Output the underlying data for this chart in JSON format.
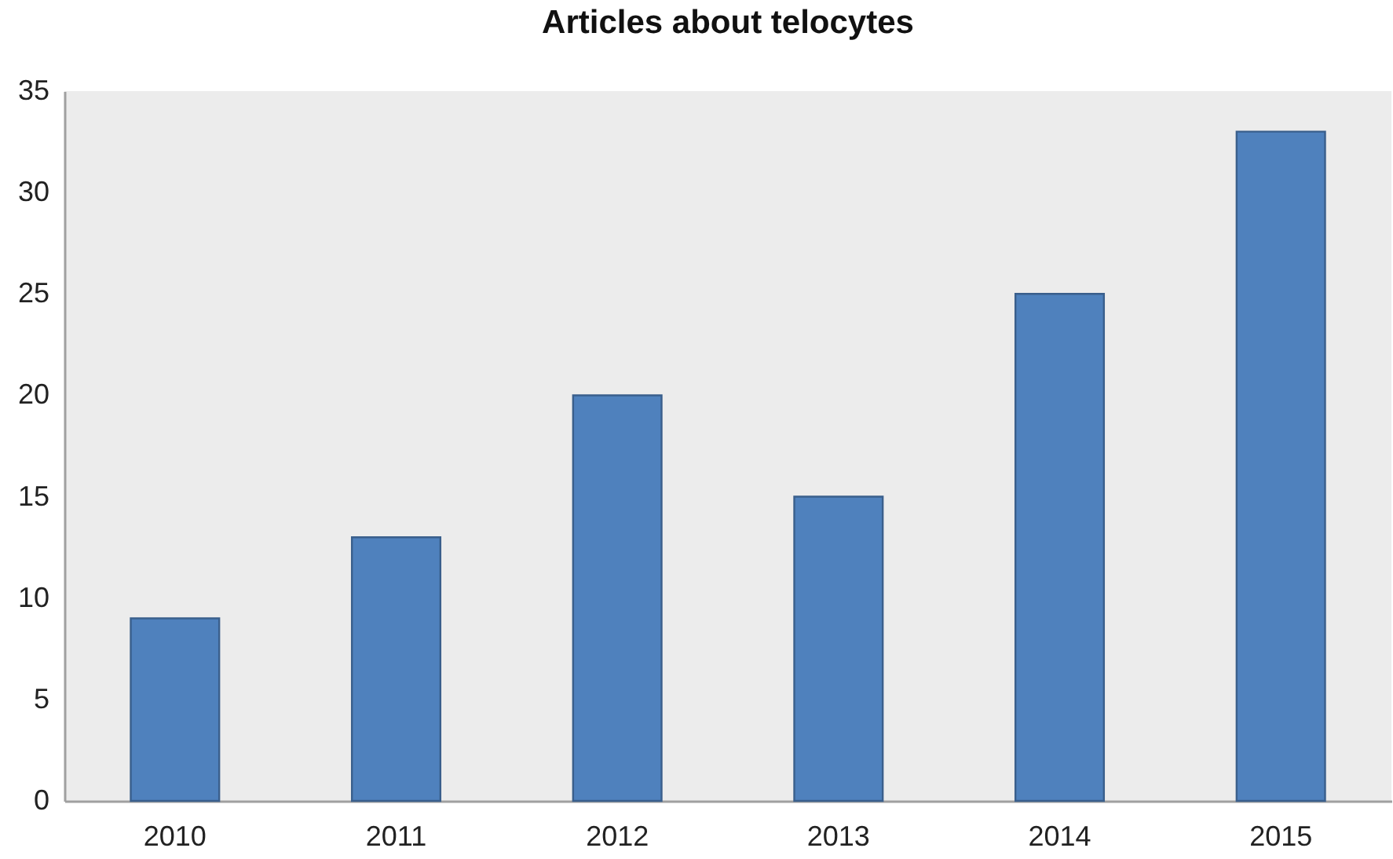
{
  "chart_data": {
    "type": "bar",
    "title": "Articles about telocytes",
    "categories": [
      "2010",
      "2011",
      "2012",
      "2013",
      "2014",
      "2015"
    ],
    "values": [
      9,
      13,
      20,
      15,
      25,
      33
    ],
    "color": "#4f81bd",
    "ylim": [
      0,
      35
    ],
    "yticks": [
      0,
      5,
      10,
      15,
      20,
      25,
      30,
      35
    ],
    "grid": false
  }
}
